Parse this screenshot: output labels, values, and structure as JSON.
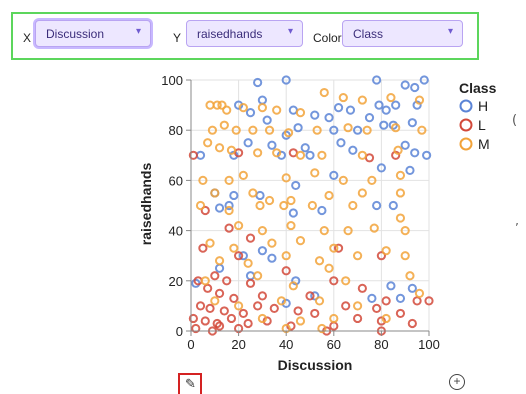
{
  "controls": {
    "x_label": "X",
    "x_value": "Discussion",
    "y_label": "Y",
    "y_value": "raisedhands",
    "color_label": "Color",
    "color_value": "Class",
    "caret_icon": "chevron-down-icon"
  },
  "toolbar": {
    "edit_icon": "pencil-icon",
    "add_icon": "plus-circle-icon"
  },
  "chart_data": {
    "type": "scatter",
    "xlabel": "Discussion",
    "ylabel": "raisedhands",
    "xlim": [
      0,
      100
    ],
    "ylim": [
      0,
      100
    ],
    "xticks": [
      0,
      20,
      40,
      60,
      80,
      100
    ],
    "yticks": [
      0,
      20,
      40,
      60,
      80,
      100
    ],
    "grid": true,
    "legend_title": "Class",
    "legend_position": "right",
    "series": [
      {
        "name": "H",
        "color": "#5b84d6",
        "points": [
          [
            40,
            100
          ],
          [
            28,
            99
          ],
          [
            78,
            100
          ],
          [
            90,
            98
          ],
          [
            94,
            97
          ],
          [
            98,
            100
          ],
          [
            20,
            90
          ],
          [
            30,
            92
          ],
          [
            25,
            87
          ],
          [
            43,
            88
          ],
          [
            52,
            86
          ],
          [
            62,
            89
          ],
          [
            67,
            88
          ],
          [
            79,
            90
          ],
          [
            82,
            88
          ],
          [
            86,
            90
          ],
          [
            95,
            90
          ],
          [
            32,
            84
          ],
          [
            45,
            81
          ],
          [
            58,
            85
          ],
          [
            75,
            85
          ],
          [
            85,
            82
          ],
          [
            93,
            83
          ],
          [
            40,
            78
          ],
          [
            60,
            80
          ],
          [
            70,
            80
          ],
          [
            81,
            82
          ],
          [
            24,
            75
          ],
          [
            34,
            74
          ],
          [
            48,
            73
          ],
          [
            63,
            75
          ],
          [
            90,
            74
          ],
          [
            18,
            70
          ],
          [
            38,
            70
          ],
          [
            50,
            70
          ],
          [
            68,
            72
          ],
          [
            94,
            71
          ],
          [
            99,
            70
          ],
          [
            4,
            70
          ],
          [
            80,
            65
          ],
          [
            92,
            64
          ],
          [
            60,
            62
          ],
          [
            44,
            58
          ],
          [
            10,
            55
          ],
          [
            18,
            54
          ],
          [
            29,
            54
          ],
          [
            12,
            49
          ],
          [
            16,
            50
          ],
          [
            55,
            48
          ],
          [
            78,
            50
          ],
          [
            85,
            50
          ],
          [
            43,
            47
          ],
          [
            30,
            32
          ],
          [
            22,
            30
          ],
          [
            34,
            29
          ],
          [
            12,
            25
          ],
          [
            25,
            22
          ],
          [
            44,
            20
          ],
          [
            84,
            18
          ],
          [
            93,
            17
          ],
          [
            52,
            14
          ],
          [
            76,
            13
          ],
          [
            88,
            13
          ],
          [
            2,
            19
          ],
          [
            40,
            11
          ]
        ]
      },
      {
        "name": "L",
        "color": "#d2493a",
        "points": [
          [
            1,
            70
          ],
          [
            20,
            71
          ],
          [
            43,
            71
          ],
          [
            86,
            70
          ],
          [
            75,
            69
          ],
          [
            6,
            48
          ],
          [
            16,
            41
          ],
          [
            25,
            37
          ],
          [
            5,
            33
          ],
          [
            20,
            30
          ],
          [
            62,
            33
          ],
          [
            80,
            30
          ],
          [
            40,
            24
          ],
          [
            10,
            22
          ],
          [
            15,
            20
          ],
          [
            25,
            19
          ],
          [
            60,
            20
          ],
          [
            3,
            20
          ],
          [
            7,
            17
          ],
          [
            12,
            15
          ],
          [
            18,
            13
          ],
          [
            30,
            14
          ],
          [
            50,
            14
          ],
          [
            72,
            17
          ],
          [
            82,
            12
          ],
          [
            95,
            12
          ],
          [
            100,
            12
          ],
          [
            4,
            10
          ],
          [
            8,
            9
          ],
          [
            14,
            8
          ],
          [
            22,
            7
          ],
          [
            28,
            10
          ],
          [
            35,
            9
          ],
          [
            45,
            8
          ],
          [
            52,
            7
          ],
          [
            65,
            10
          ],
          [
            78,
            9
          ],
          [
            88,
            7
          ],
          [
            1,
            5
          ],
          [
            6,
            4
          ],
          [
            11,
            3
          ],
          [
            17,
            5
          ],
          [
            24,
            3
          ],
          [
            32,
            4
          ],
          [
            42,
            2
          ],
          [
            60,
            2
          ],
          [
            70,
            5
          ],
          [
            80,
            4
          ],
          [
            93,
            3
          ],
          [
            2,
            1
          ],
          [
            9,
            0
          ],
          [
            12,
            2
          ],
          [
            20,
            1
          ],
          [
            57,
            0
          ],
          [
            80,
            0
          ]
        ]
      },
      {
        "name": "M",
        "color": "#f2a33a",
        "points": [
          [
            8,
            90
          ],
          [
            11,
            90
          ],
          [
            13,
            90
          ],
          [
            15,
            88
          ],
          [
            22,
            89
          ],
          [
            30,
            89
          ],
          [
            36,
            88
          ],
          [
            46,
            87
          ],
          [
            56,
            95
          ],
          [
            64,
            93
          ],
          [
            72,
            92
          ],
          [
            84,
            93
          ],
          [
            96,
            92
          ],
          [
            9,
            80
          ],
          [
            14,
            82
          ],
          [
            19,
            80
          ],
          [
            26,
            80
          ],
          [
            33,
            80
          ],
          [
            41,
            79
          ],
          [
            53,
            80
          ],
          [
            66,
            81
          ],
          [
            74,
            80
          ],
          [
            86,
            81
          ],
          [
            97,
            80
          ],
          [
            7,
            75
          ],
          [
            12,
            73
          ],
          [
            17,
            72
          ],
          [
            28,
            71
          ],
          [
            36,
            71
          ],
          [
            46,
            70
          ],
          [
            55,
            70
          ],
          [
            72,
            70
          ],
          [
            87,
            72
          ],
          [
            5,
            60
          ],
          [
            16,
            60
          ],
          [
            22,
            62
          ],
          [
            40,
            61
          ],
          [
            52,
            63
          ],
          [
            64,
            60
          ],
          [
            76,
            60
          ],
          [
            88,
            62
          ],
          [
            10,
            55
          ],
          [
            26,
            55
          ],
          [
            33,
            52
          ],
          [
            42,
            52
          ],
          [
            58,
            54
          ],
          [
            72,
            55
          ],
          [
            88,
            55
          ],
          [
            4,
            50
          ],
          [
            16,
            48
          ],
          [
            29,
            50
          ],
          [
            39,
            50
          ],
          [
            51,
            50
          ],
          [
            68,
            50
          ],
          [
            88,
            45
          ],
          [
            20,
            42
          ],
          [
            30,
            40
          ],
          [
            42,
            42
          ],
          [
            56,
            40
          ],
          [
            66,
            40
          ],
          [
            77,
            41
          ],
          [
            90,
            40
          ],
          [
            8,
            35
          ],
          [
            18,
            33
          ],
          [
            34,
            35
          ],
          [
            46,
            36
          ],
          [
            60,
            33
          ],
          [
            82,
            32
          ],
          [
            12,
            28
          ],
          [
            24,
            27
          ],
          [
            40,
            30
          ],
          [
            54,
            28
          ],
          [
            70,
            30
          ],
          [
            90,
            30
          ],
          [
            6,
            20
          ],
          [
            28,
            22
          ],
          [
            43,
            18
          ],
          [
            58,
            25
          ],
          [
            65,
            20
          ],
          [
            92,
            22
          ],
          [
            10,
            12
          ],
          [
            20,
            10
          ],
          [
            38,
            12
          ],
          [
            54,
            12
          ],
          [
            70,
            10
          ],
          [
            96,
            15
          ],
          [
            30,
            5
          ],
          [
            46,
            4
          ],
          [
            60,
            5
          ],
          [
            82,
            5
          ],
          [
            40,
            1
          ],
          [
            55,
            1
          ]
        ]
      }
    ]
  }
}
